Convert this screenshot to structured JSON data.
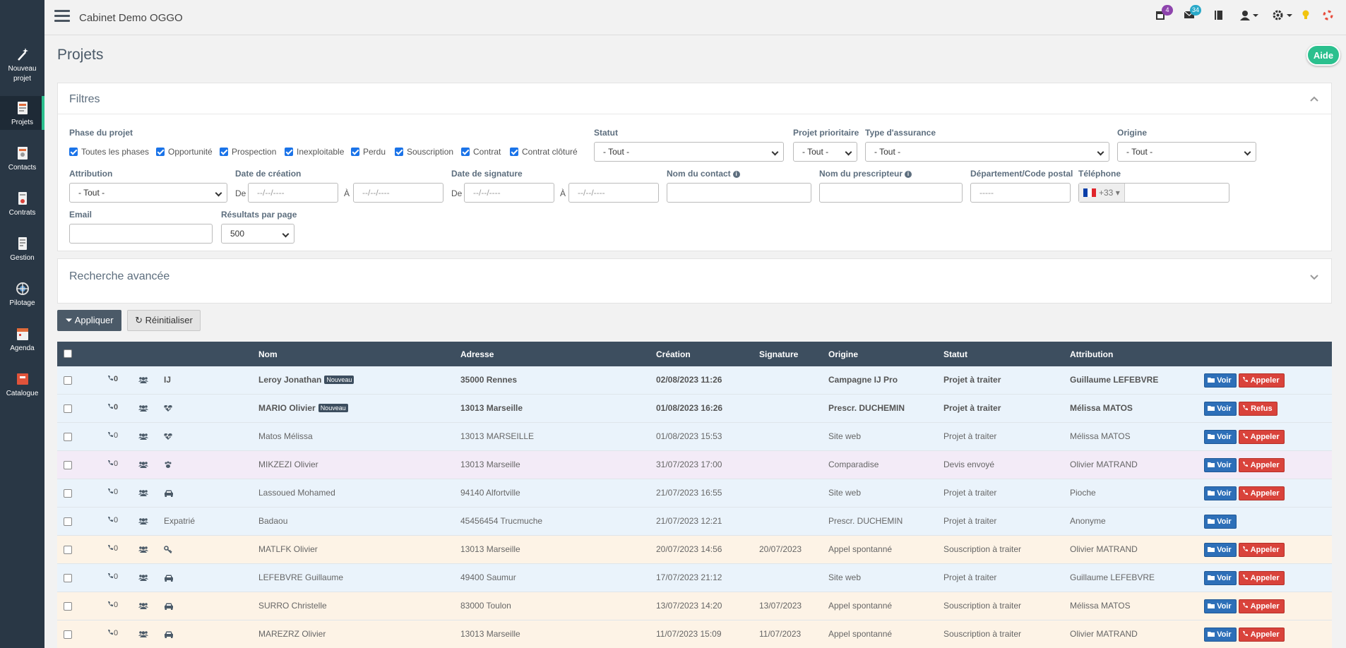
{
  "app": {
    "title": "Cabinet Demo OGGO"
  },
  "topbar": {
    "calendar_badge": "4",
    "mail_badge": "34",
    "colors": {
      "calendar_badge": "#8e44ad",
      "mail_badge": "#29a9c9"
    }
  },
  "sidebar": {
    "items": [
      {
        "label": "Nouveau projet",
        "icon": "magic-wand-icon"
      },
      {
        "label": "Projets",
        "icon": "projects-icon",
        "active": true
      },
      {
        "label": "Contacts",
        "icon": "contacts-icon"
      },
      {
        "label": "Contrats",
        "icon": "contracts-icon"
      },
      {
        "label": "Gestion",
        "icon": "gestion-icon"
      },
      {
        "label": "Pilotage",
        "icon": "pilotage-icon"
      },
      {
        "label": "Agenda",
        "icon": "agenda-icon"
      },
      {
        "label": "Catalogue",
        "icon": "catalogue-icon"
      }
    ]
  },
  "page": {
    "title": "Projets",
    "help_label": "Aide"
  },
  "filters": {
    "title": "Filtres",
    "phase_label": "Phase du projet",
    "phases": [
      "Toutes les phases",
      "Opportunité",
      "Prospection",
      "Inexploitable",
      "Perdu",
      "Souscription",
      "Contrat",
      "Contrat clôturé"
    ],
    "statut_label": "Statut",
    "statut_value": "- Tout -",
    "prioritaire_label": "Projet prioritaire",
    "prioritaire_value": "- Tout -",
    "assurance_label": "Type d'assurance",
    "assurance_value": "- Tout -",
    "origine_label": "Origine",
    "origine_value": "- Tout -",
    "attribution_label": "Attribution",
    "attribution_value": "- Tout -",
    "creation_label": "Date de création",
    "signature_label": "Date de signature",
    "de_label": "De",
    "a_label": "À",
    "date_placeholder": "--/--/----",
    "contact_label": "Nom du contact",
    "prescripteur_label": "Nom du prescripteur",
    "departement_label": "Département/Code postal",
    "departement_placeholder": "-----",
    "telephone_label": "Téléphone",
    "telephone_prefix": "+33",
    "email_label": "Email",
    "results_label": "Résultats par page",
    "results_value": "500"
  },
  "advanced": {
    "title": "Recherche avancée"
  },
  "actions": {
    "apply": "Appliquer",
    "reset": "Réinitialiser"
  },
  "table": {
    "headers": {
      "nom": "Nom",
      "adresse": "Adresse",
      "creation": "Création",
      "signature": "Signature",
      "origine": "Origine",
      "statut": "Statut",
      "attribution": "Attribution"
    },
    "voir_label": "Voir",
    "rows": [
      {
        "calls": "0",
        "type": "IJ",
        "type_icon": "",
        "nom": "Leroy Jonathan",
        "nouveau": "Nouveau",
        "adresse": "35000 Rennes",
        "creation": "02/08/2023 11:26",
        "signature": "",
        "origine": "Campagne IJ Pro",
        "statut": "Projet à traiter",
        "attribution": "Guillaume LEFEBVRE",
        "action": "Appeler",
        "bold": true,
        "bg": "#eaf3fb"
      },
      {
        "calls": "0",
        "type": "",
        "type_icon": "heart-pulse-icon",
        "nom": "MARIO Olivier",
        "nouveau": "Nouveau",
        "adresse": "13013 Marseille",
        "creation": "01/08/2023 16:26",
        "signature": "",
        "origine": "Prescr. DUCHEMIN",
        "statut": "Projet à traiter",
        "attribution": "Mélissa MATOS",
        "action": "Refus",
        "bold": true,
        "bg": "#eaf3fb"
      },
      {
        "calls": "0",
        "type": "",
        "type_icon": "heart-pulse-icon",
        "nom": "Matos Mélissa",
        "nouveau": "",
        "adresse": "13013 MARSEILLE",
        "creation": "01/08/2023 15:53",
        "signature": "",
        "origine": "Site web",
        "statut": "Projet à traiter",
        "attribution": "Mélissa MATOS",
        "action": "Appeler",
        "bold": false,
        "bg": "#eaf3fb"
      },
      {
        "calls": "0",
        "type": "",
        "type_icon": "paw-icon",
        "nom": "MIKZEZI Olivier",
        "nouveau": "",
        "adresse": "13013 Marseille",
        "creation": "31/07/2023 17:00",
        "signature": "",
        "origine": "Comparadise",
        "statut": "Devis envoyé",
        "attribution": "Olivier MATRAND",
        "action": "Appeler",
        "bold": false,
        "bg": "#f3ebf7"
      },
      {
        "calls": "0",
        "type": "",
        "type_icon": "car-icon",
        "nom": "Lassoued Mohamed",
        "nouveau": "",
        "adresse": "94140 Alfortville",
        "creation": "21/07/2023 16:55",
        "signature": "",
        "origine": "Site web",
        "statut": "Projet à traiter",
        "attribution": "Pioche",
        "action": "Appeler",
        "bold": false,
        "bg": "#eaf3fb"
      },
      {
        "calls": "0",
        "type": "Expatrié",
        "type_icon": "",
        "nom": "Badaou",
        "nouveau": "",
        "adresse": "45456454 Trucmuche",
        "creation": "21/07/2023 12:21",
        "signature": "",
        "origine": "Prescr. DUCHEMIN",
        "statut": "Projet à traiter",
        "attribution": "Anonyme",
        "action": "",
        "bold": false,
        "bg": "#eaf3fb"
      },
      {
        "calls": "0",
        "type": "",
        "type_icon": "key-icon",
        "nom": "MATLFK Olivier",
        "nouveau": "",
        "adresse": "13013 Marseille",
        "creation": "20/07/2023 14:56",
        "signature": "20/07/2023",
        "origine": "Appel spontanné",
        "statut": "Souscription à traiter",
        "attribution": "Olivier MATRAND",
        "action": "Appeler",
        "bold": false,
        "bg": "#fdf3e6"
      },
      {
        "calls": "0",
        "type": "",
        "type_icon": "car-icon",
        "nom": "LEFEBVRE Guillaume",
        "nouveau": "",
        "adresse": "49400 Saumur",
        "creation": "17/07/2023 21:12",
        "signature": "",
        "origine": "Site web",
        "statut": "Projet à traiter",
        "attribution": "Guillaume LEFEBVRE",
        "action": "Appeler",
        "bold": false,
        "bg": "#eaf3fb"
      },
      {
        "calls": "0",
        "type": "",
        "type_icon": "car-icon",
        "nom": "SURRO Christelle",
        "nouveau": "",
        "adresse": "83000 Toulon",
        "creation": "13/07/2023 14:20",
        "signature": "13/07/2023",
        "origine": "Appel spontanné",
        "statut": "Souscription à traiter",
        "attribution": "Mélissa MATOS",
        "action": "Appeler",
        "bold": false,
        "bg": "#fdf3e6"
      },
      {
        "calls": "0",
        "type": "",
        "type_icon": "car-icon",
        "nom": "MAREZRZ Olivier",
        "nouveau": "",
        "adresse": "13013 Marseille",
        "creation": "11/07/2023 15:09",
        "signature": "11/07/2023",
        "origine": "Appel spontanné",
        "statut": "Souscription à traiter",
        "attribution": "Olivier MATRAND",
        "action": "Appeler",
        "bold": false,
        "bg": "#fdf3e6"
      }
    ]
  }
}
